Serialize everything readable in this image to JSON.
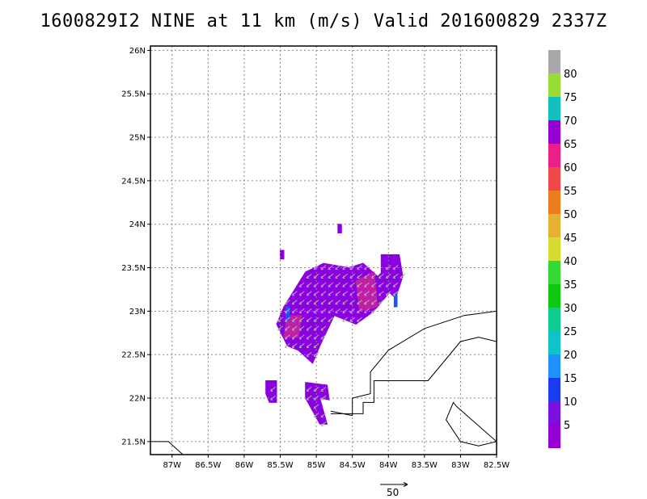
{
  "title": "1600829I2 NINE at 11 km (m/s) Valid 201600829 2337Z",
  "map": {
    "lon_range": [
      -87.3,
      -82.5
    ],
    "lat_range": [
      21.35,
      26.05
    ],
    "x_ticks": [
      {
        "lon": -87.0,
        "label": "87W"
      },
      {
        "lon": -86.5,
        "label": "86.5W"
      },
      {
        "lon": -86.0,
        "label": "86W"
      },
      {
        "lon": -85.5,
        "label": "85.5W"
      },
      {
        "lon": -85.0,
        "label": "85W"
      },
      {
        "lon": -84.5,
        "label": "84.5W"
      },
      {
        "lon": -84.0,
        "label": "84W"
      },
      {
        "lon": -83.5,
        "label": "83.5W"
      },
      {
        "lon": -83.0,
        "label": "83W"
      },
      {
        "lon": -82.5,
        "label": "82.5W"
      }
    ],
    "y_ticks": [
      {
        "lat": 26.0,
        "label": "26N"
      },
      {
        "lat": 25.5,
        "label": "25.5N"
      },
      {
        "lat": 25.0,
        "label": "25N"
      },
      {
        "lat": 24.5,
        "label": "24.5N"
      },
      {
        "lat": 24.0,
        "label": "24N"
      },
      {
        "lat": 23.5,
        "label": "23.5N"
      },
      {
        "lat": 23.0,
        "label": "23N"
      },
      {
        "lat": 22.5,
        "label": "22.5N"
      },
      {
        "lat": 22.0,
        "label": "22N"
      },
      {
        "lat": 21.5,
        "label": "21.5N"
      }
    ],
    "gridlines": true,
    "colors": {
      "wind_main": "#8b00e0",
      "wind_high": "#c01fa8",
      "wind_blue": "#2255ee",
      "arrow": "#b0b0b0",
      "coast": "#000000"
    },
    "wind_regions": [
      {
        "level": "main",
        "lons": [
          -85.45,
          -85.15,
          -84.9,
          -84.55,
          -84.35,
          -84.15,
          -83.95,
          -83.9,
          -84.2,
          -84.45,
          -84.75,
          -84.95,
          -85.05,
          -85.25,
          -85.4,
          -85.55
        ],
        "lats": [
          23.05,
          23.45,
          23.55,
          23.5,
          23.55,
          23.4,
          23.55,
          23.3,
          23.0,
          22.85,
          22.95,
          22.6,
          22.4,
          22.55,
          22.6,
          22.85
        ]
      },
      {
        "level": "main",
        "lons": [
          -84.1,
          -83.85,
          -83.8,
          -83.9,
          -84.1
        ],
        "lats": [
          23.65,
          23.65,
          23.4,
          23.15,
          23.3
        ]
      },
      {
        "level": "main",
        "lons": [
          -85.7,
          -85.55,
          -85.55,
          -85.65,
          -85.7
        ],
        "lats": [
          22.2,
          22.2,
          21.95,
          21.95,
          22.05
        ]
      },
      {
        "level": "main",
        "lons": [
          -85.15,
          -84.85,
          -84.82,
          -84.95,
          -84.85,
          -84.95,
          -85.15
        ],
        "lats": [
          22.18,
          22.15,
          21.98,
          22.0,
          21.7,
          21.7,
          22.0
        ]
      },
      {
        "level": "main",
        "lons": [
          -84.7,
          -84.65,
          -84.65,
          -84.7
        ],
        "lats": [
          24.0,
          24.0,
          23.9,
          23.9
        ]
      },
      {
        "level": "main",
        "lons": [
          -85.5,
          -85.45,
          -85.45,
          -85.5
        ],
        "lats": [
          23.7,
          23.7,
          23.6,
          23.6
        ]
      },
      {
        "level": "high",
        "lons": [
          -84.45,
          -84.2,
          -84.15,
          -84.4
        ],
        "lats": [
          23.35,
          23.45,
          23.05,
          23.0
        ]
      },
      {
        "level": "high",
        "lons": [
          -85.4,
          -85.2,
          -85.25,
          -85.45
        ],
        "lats": [
          22.95,
          22.95,
          22.7,
          22.7
        ]
      },
      {
        "level": "blue",
        "lons": [
          -85.42,
          -85.37,
          -85.37,
          -85.42
        ],
        "lats": [
          23.05,
          23.05,
          22.9,
          22.9
        ]
      },
      {
        "level": "blue",
        "lons": [
          -83.92,
          -83.88,
          -83.88,
          -83.92
        ],
        "lats": [
          23.2,
          23.2,
          23.05,
          23.05
        ]
      }
    ],
    "coastlines": [
      {
        "lons": [
          -82.5,
          -82.95,
          -83.5,
          -84.0,
          -84.25,
          -84.25,
          -84.5,
          -84.5,
          -84.8
        ],
        "lats": [
          23.0,
          22.95,
          22.8,
          22.55,
          22.3,
          22.05,
          22.0,
          21.8,
          21.85
        ]
      },
      {
        "lons": [
          -82.5,
          -82.75,
          -83.0,
          -83.45,
          -84.2,
          -84.2,
          -84.35,
          -84.35,
          -84.8
        ],
        "lats": [
          22.65,
          22.7,
          22.65,
          22.2,
          22.2,
          21.95,
          21.95,
          21.82,
          21.82
        ]
      },
      {
        "lons": [
          -82.5,
          -82.75,
          -83.0,
          -83.2,
          -83.1,
          -83.05,
          -82.5
        ],
        "lats": [
          21.5,
          21.45,
          21.5,
          21.75,
          21.95,
          21.9,
          21.5
        ]
      },
      {
        "lons": [
          -87.3,
          -87.05,
          -86.85
        ],
        "lats": [
          21.5,
          21.5,
          21.35
        ]
      }
    ]
  },
  "colorbar": {
    "segments": [
      {
        "color": "#9400d3"
      },
      {
        "color": "#7a10e0"
      },
      {
        "color": "#1a3cf0"
      },
      {
        "color": "#1e90ff"
      },
      {
        "color": "#11c2c8"
      },
      {
        "color": "#10cc90"
      },
      {
        "color": "#11c811"
      },
      {
        "color": "#34d934"
      },
      {
        "color": "#d8dc30"
      },
      {
        "color": "#e6b030"
      },
      {
        "color": "#ec7e20"
      },
      {
        "color": "#f04848"
      },
      {
        "color": "#ea2088"
      },
      {
        "color": "#9400d3"
      },
      {
        "color": "#11bec0"
      },
      {
        "color": "#98dc34"
      },
      {
        "color": "#a8a8a8"
      }
    ],
    "labels": [
      "5",
      "10",
      "15",
      "20",
      "25",
      "30",
      "35",
      "40",
      "45",
      "50",
      "55",
      "60",
      "65",
      "70",
      "75",
      "80"
    ]
  },
  "reference_vector": {
    "label": "50"
  }
}
